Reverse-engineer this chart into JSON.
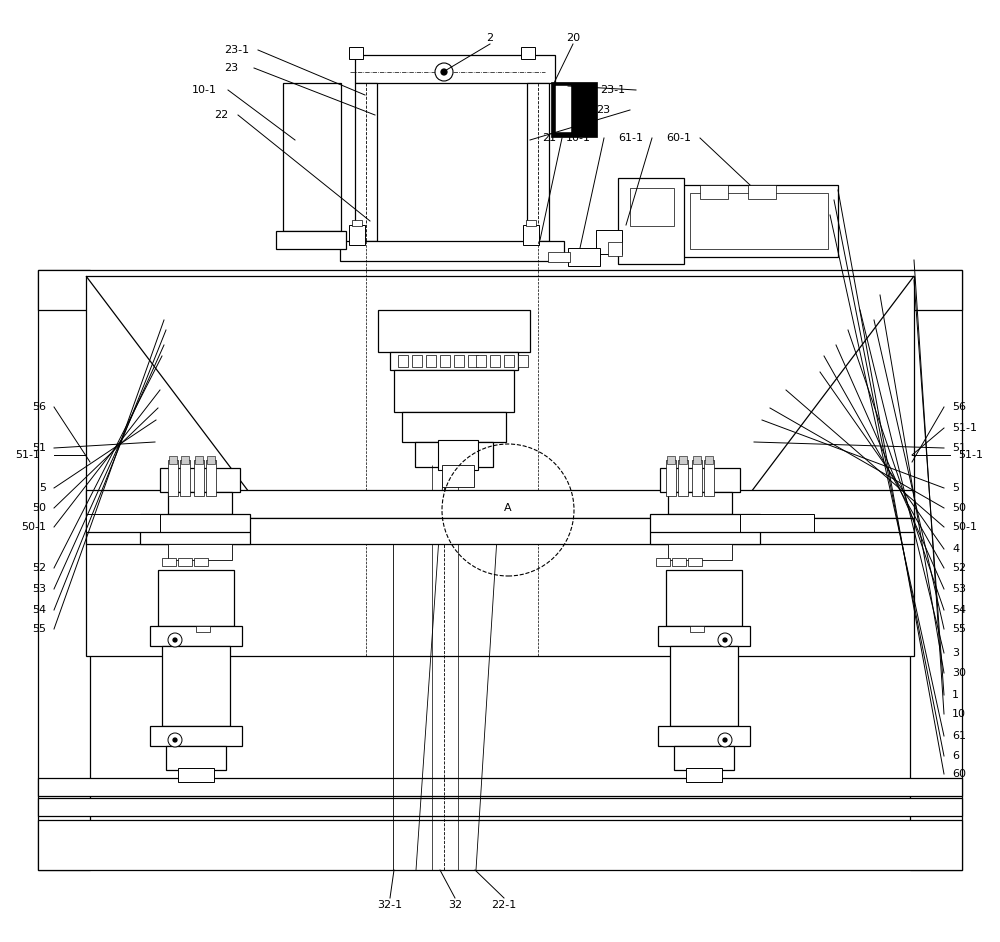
{
  "bg": "#ffffff",
  "lc": "#000000",
  "lw": 0.9,
  "fs": 8.0,
  "fig_w": 10.0,
  "fig_h": 9.42,
  "right_labels": [
    [
      "60",
      0.822
    ],
    [
      "6",
      0.803
    ],
    [
      "61",
      0.782
    ],
    [
      "10",
      0.758
    ],
    [
      "1",
      0.738
    ],
    [
      "30",
      0.715
    ],
    [
      "3",
      0.694
    ],
    [
      "55",
      0.668
    ],
    [
      "54",
      0.648
    ],
    [
      "53",
      0.626
    ],
    [
      "52",
      0.604
    ],
    [
      "4",
      0.583
    ],
    [
      "50-1",
      0.56
    ],
    [
      "50",
      0.54
    ],
    [
      "5",
      0.519
    ],
    [
      "51",
      0.476
    ],
    [
      "51-1",
      0.455
    ],
    [
      "56",
      0.433
    ]
  ],
  "left_labels": [
    [
      "55",
      0.668
    ],
    [
      "54",
      0.648
    ],
    [
      "53",
      0.626
    ],
    [
      "52",
      0.604
    ],
    [
      "50-1",
      0.56
    ],
    [
      "50",
      0.54
    ],
    [
      "5",
      0.519
    ],
    [
      "51",
      0.476
    ],
    [
      "56",
      0.433
    ]
  ]
}
